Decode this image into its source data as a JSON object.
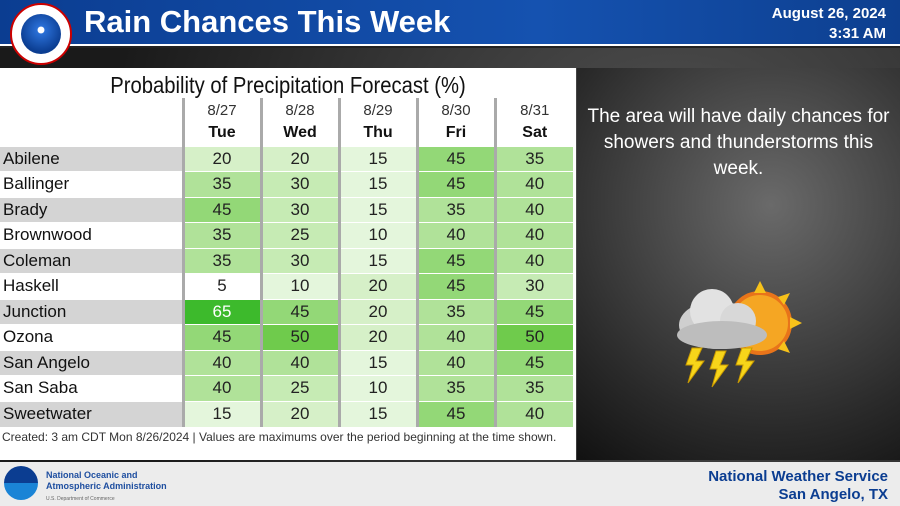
{
  "header": {
    "title": "Rain Chances This Week",
    "date": "August 26, 2024",
    "time": "3:31 AM",
    "logo_text": "NATIONAL WEATHER SERVICE"
  },
  "table": {
    "title": "Probability of Precipitation Forecast (%)",
    "columns": [
      {
        "date": "8/27",
        "day": "Tue"
      },
      {
        "date": "8/28",
        "day": "Wed"
      },
      {
        "date": "8/29",
        "day": "Thu"
      },
      {
        "date": "8/30",
        "day": "Fri"
      },
      {
        "date": "8/31",
        "day": "Sat"
      }
    ],
    "rows": [
      {
        "name": "Abilene",
        "values": [
          20,
          20,
          15,
          45,
          35
        ]
      },
      {
        "name": "Ballinger",
        "values": [
          35,
          30,
          15,
          45,
          40
        ]
      },
      {
        "name": "Brady",
        "values": [
          45,
          30,
          15,
          35,
          40
        ]
      },
      {
        "name": "Brownwood",
        "values": [
          35,
          25,
          10,
          40,
          40
        ]
      },
      {
        "name": "Coleman",
        "values": [
          35,
          30,
          15,
          45,
          40
        ]
      },
      {
        "name": "Haskell",
        "values": [
          5,
          10,
          20,
          45,
          30
        ]
      },
      {
        "name": "Junction",
        "values": [
          65,
          45,
          20,
          35,
          45
        ]
      },
      {
        "name": "Ozona",
        "values": [
          45,
          50,
          20,
          40,
          50
        ]
      },
      {
        "name": "San Angelo",
        "values": [
          40,
          40,
          15,
          40,
          45
        ]
      },
      {
        "name": "San Saba",
        "values": [
          40,
          25,
          10,
          35,
          35
        ]
      },
      {
        "name": "Sweetwater",
        "values": [
          15,
          20,
          15,
          45,
          40
        ]
      }
    ],
    "note": "Created: 3 am CDT Mon 8/26/2024  |  Values are maximums over the period beginning at the time shown."
  },
  "message": "The area will have daily chances for showers and thunderstorms this week.",
  "icon": "thunderstorm-sun-icon",
  "footer": {
    "noaa_line1": "National Oceanic and",
    "noaa_line2": "Atmospheric Administration",
    "noaa_line3": "U.S. Department of Commerce",
    "office_line1": "National Weather Service",
    "office_line2": "San Angelo, TX"
  }
}
